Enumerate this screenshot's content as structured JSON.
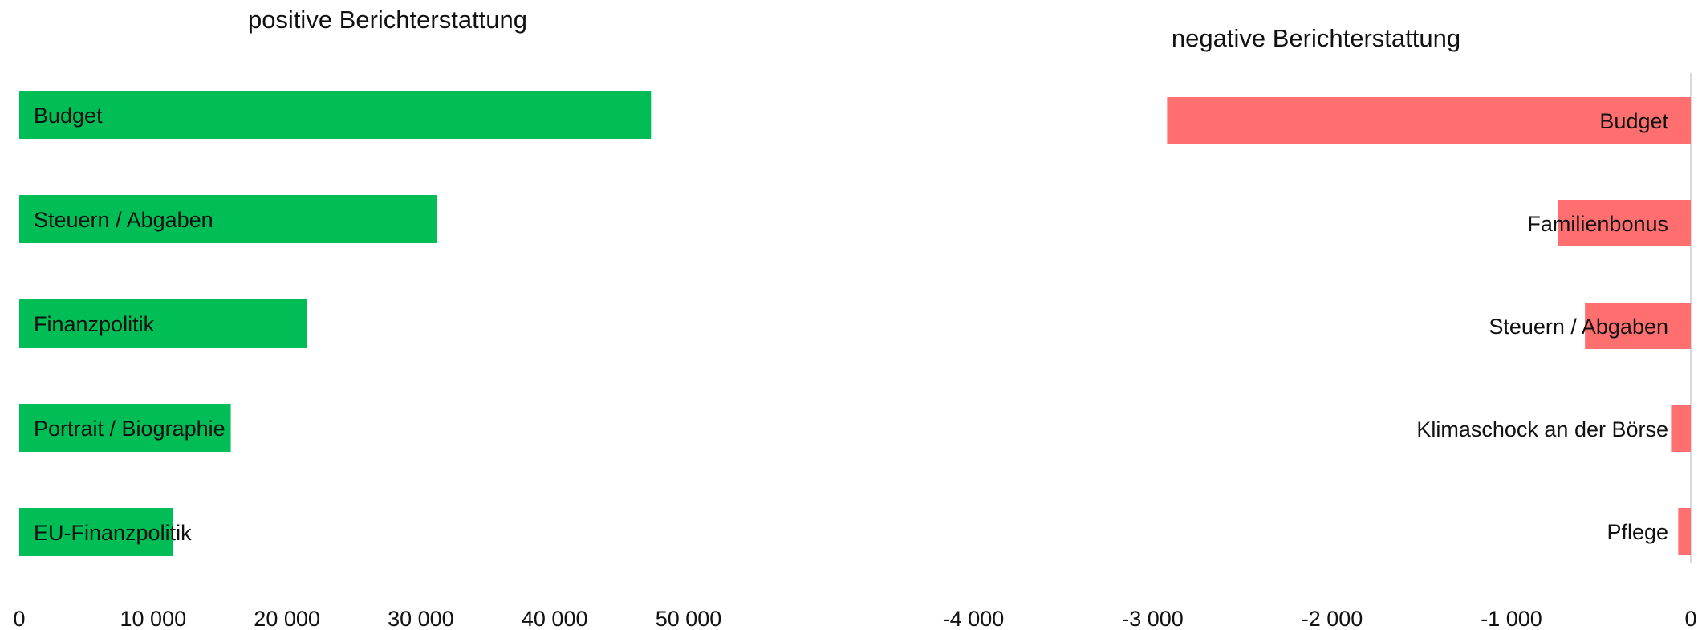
{
  "chart_data": [
    {
      "type": "bar",
      "orientation": "horizontal",
      "title": "positive Berichterstattung",
      "categories": [
        "Budget",
        "Steuern / Abgaben",
        "Finanzpolitik",
        "Portrait / Biographie",
        "EU-Finanzpolitik"
      ],
      "values": [
        47200,
        31200,
        21500,
        15800,
        11500
      ],
      "xlim": [
        0,
        50000
      ],
      "xticks": [
        0,
        10000,
        20000,
        30000,
        40000,
        50000
      ],
      "xtick_labels": [
        "0",
        "10 000",
        "20 000",
        "30 000",
        "40 000",
        "50 000"
      ],
      "bar_color": "#00BE55",
      "grid": false,
      "legend": "none"
    },
    {
      "type": "bar",
      "orientation": "horizontal",
      "title": "negative Berichterstattung",
      "categories": [
        "Budget",
        "Familienbonus",
        "Steuern / Abgaben",
        "Klimaschock an der Börse",
        "Pflege"
      ],
      "values": [
        -2920,
        -740,
        -590,
        -110,
        -70
      ],
      "xlim": [
        -4000,
        0
      ],
      "xticks": [
        -4000,
        -3000,
        -2000,
        -1000,
        0
      ],
      "xtick_labels": [
        "-4 000",
        "-3 000",
        "-2 000",
        "-1 000",
        "0"
      ],
      "bar_color": "#FF6F6F",
      "grid": false,
      "legend": "none"
    }
  ]
}
